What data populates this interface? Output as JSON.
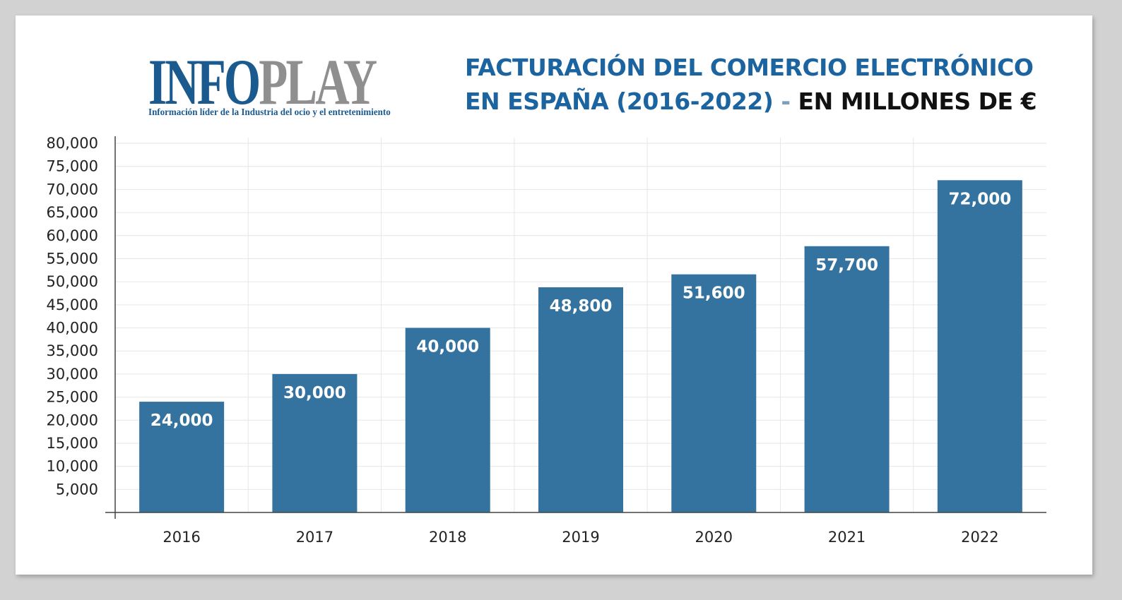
{
  "logo": {
    "word_blue": "INFO",
    "word_grey": "PLAY",
    "tagline": "Información líder de la Industria del ocio y el entretenimiento"
  },
  "title": {
    "line1": "FACTURACIÓN DEL COMERCIO ELECTRÓNICO",
    "line2": "EN ESPAÑA (2016-2022)",
    "dash": " - ",
    "unit": "EN MILLONES DE €"
  },
  "colors": {
    "bar": "#34729f",
    "title": "#1c64a0",
    "logo_blue": "#1b5a8f",
    "logo_grey": "#8f8f8f",
    "grid": "#e6e6e6"
  },
  "chart_data": {
    "type": "bar",
    "categories": [
      "2016",
      "2017",
      "2018",
      "2019",
      "2020",
      "2021",
      "2022"
    ],
    "values": [
      24000,
      30000,
      40000,
      48800,
      51600,
      57700,
      72000
    ],
    "value_labels": [
      "24,000",
      "30,000",
      "40,000",
      "48,800",
      "51,600",
      "57,700",
      "72,000"
    ],
    "y_ticks": [
      "5,000",
      "10,000",
      "15,000",
      "20,000",
      "25,000",
      "30,000",
      "35,000",
      "40,000",
      "45,000",
      "50,000",
      "55,000",
      "60,000",
      "65,000",
      "70,000",
      "75,000",
      "80,000"
    ],
    "ylim": [
      0,
      80000
    ],
    "title": "FACTURACIÓN DEL COMERCIO ELECTRÓNICO EN ESPAÑA (2016-2022) - EN MILLONES DE €",
    "xlabel": "",
    "ylabel": "",
    "grid": true,
    "legend": "none"
  }
}
